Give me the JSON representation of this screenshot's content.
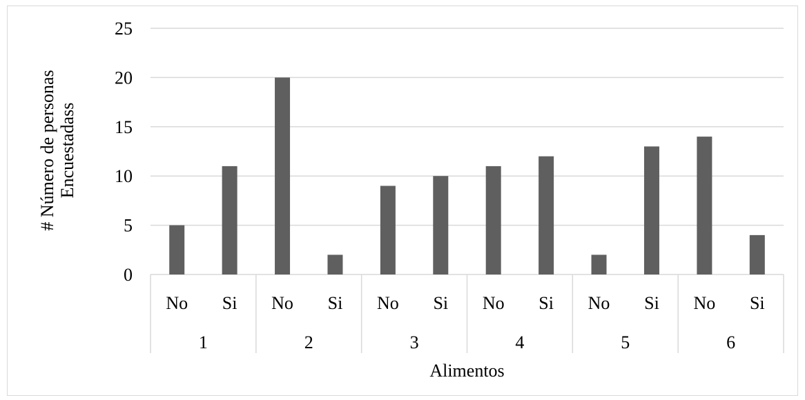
{
  "chart_data": {
    "type": "bar",
    "groups": [
      "1",
      "2",
      "3",
      "4",
      "5",
      "6"
    ],
    "subcategories": [
      "No",
      "Si"
    ],
    "values": [
      [
        5,
        11
      ],
      [
        20,
        2
      ],
      [
        9,
        10
      ],
      [
        11,
        12
      ],
      [
        2,
        13
      ],
      [
        14,
        4
      ]
    ],
    "xlabel": "Alimentos",
    "ylabel_lines": [
      "# Número de  personas",
      "Encuestadass"
    ],
    "yticks": [
      "0",
      "5",
      "10",
      "15",
      "20",
      "25"
    ],
    "ylim": [
      0,
      25
    ],
    "grid": true,
    "bar_color": "#5f5f5f",
    "grid_color": "#d9d9d9"
  }
}
